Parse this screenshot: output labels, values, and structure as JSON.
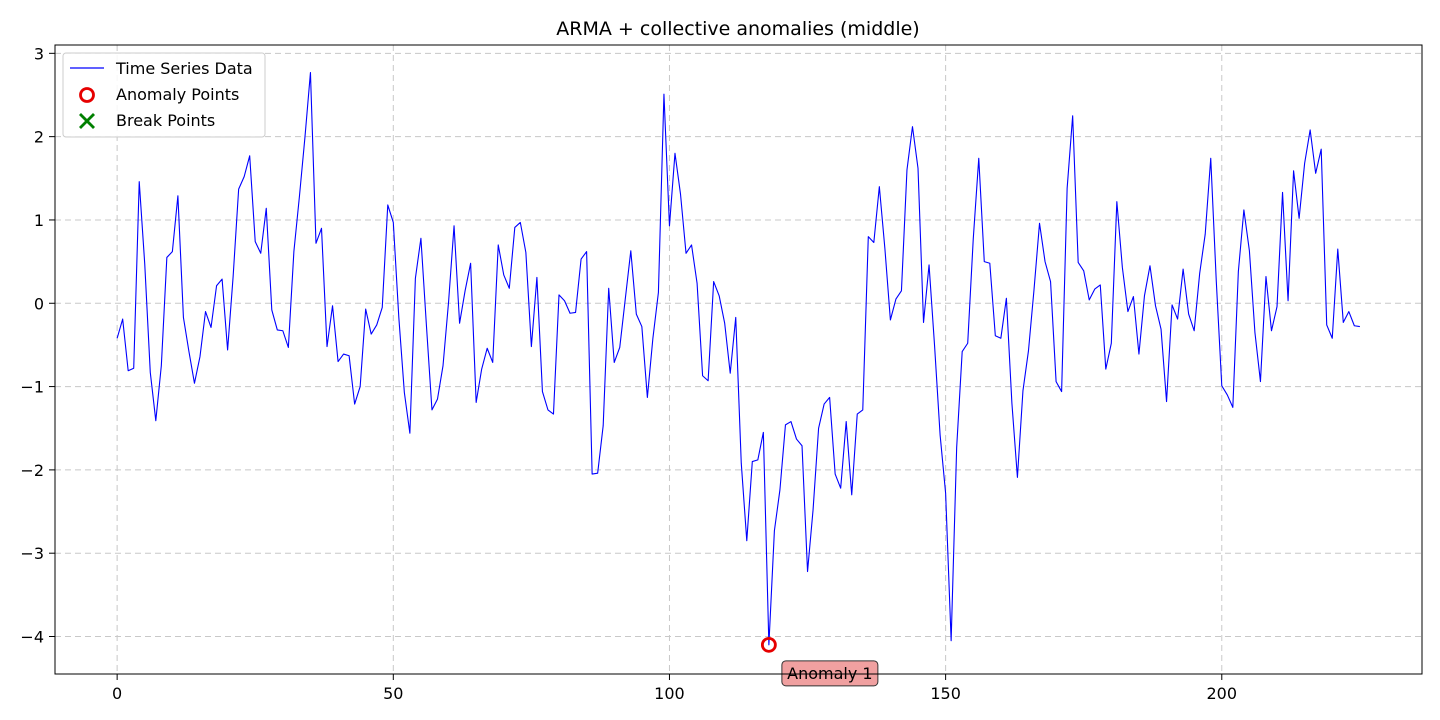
{
  "chart_data": {
    "type": "line",
    "title": "ARMA + collective anomalies (middle)",
    "xlabel": "",
    "ylabel": "",
    "xlim": [
      -11.25,
      236.25
    ],
    "ylim": [
      -4.45,
      3.1
    ],
    "xticks": [
      0,
      50,
      100,
      150,
      200
    ],
    "yticks": [
      3,
      2,
      1,
      0,
      -1,
      -2,
      -3,
      -4
    ],
    "ytick_labels": [
      "3",
      "2",
      "1",
      "0",
      "−1",
      "−2",
      "−3",
      "−4"
    ],
    "grid": true,
    "legend_position": "upper-left",
    "series": [
      {
        "name": "Time Series Data",
        "color": "#0000ff",
        "x_start": 0,
        "values": [
          -0.42,
          -0.19,
          -0.81,
          -0.78,
          1.46,
          0.47,
          -0.83,
          -1.41,
          -0.75,
          0.55,
          0.62,
          1.29,
          -0.17,
          -0.58,
          -0.96,
          -0.64,
          -0.1,
          -0.29,
          0.21,
          0.29,
          -0.56,
          0.32,
          1.37,
          1.52,
          1.77,
          0.74,
          0.6,
          1.14,
          -0.08,
          -0.32,
          -0.33,
          -0.53,
          0.62,
          1.28,
          1.99,
          2.77,
          0.72,
          0.9,
          -0.52,
          -0.03,
          -0.7,
          -0.61,
          -0.63,
          -1.21,
          -1.0,
          -0.07,
          -0.37,
          -0.26,
          -0.05,
          1.18,
          0.97,
          -0.17,
          -1.07,
          -1.56,
          0.3,
          0.78,
          -0.27,
          -1.28,
          -1.15,
          -0.75,
          0.01,
          0.93,
          -0.24,
          0.15,
          0.48,
          -1.19,
          -0.79,
          -0.54,
          -0.71,
          0.7,
          0.34,
          0.18,
          0.91,
          0.97,
          0.61,
          -0.52,
          0.31,
          -1.06,
          -1.28,
          -1.33,
          0.1,
          0.03,
          -0.12,
          -0.11,
          0.53,
          0.62,
          -2.05,
          -2.04,
          -1.47,
          0.18,
          -0.71,
          -0.53,
          0.05,
          0.63,
          -0.13,
          -0.28,
          -1.13,
          -0.42,
          0.13,
          2.51,
          0.93,
          1.8,
          1.31,
          0.6,
          0.7,
          0.24,
          -0.87,
          -0.93,
          0.26,
          0.09,
          -0.24,
          -0.84,
          -0.17,
          -1.92,
          -2.85,
          -1.9,
          -1.88,
          -1.55,
          -4.1,
          -2.73,
          -2.24,
          -1.46,
          -1.42,
          -1.63,
          -1.71,
          -3.22,
          -2.48,
          -1.5,
          -1.21,
          -1.13,
          -2.05,
          -2.22,
          -1.42,
          -2.3,
          -1.33,
          -1.28,
          0.8,
          0.73,
          1.4,
          0.66,
          -0.2,
          0.05,
          0.15,
          1.6,
          2.12,
          1.62,
          -0.23,
          0.46,
          -0.51,
          -1.58,
          -2.28,
          -4.05,
          -1.73,
          -0.58,
          -0.48,
          0.77,
          1.74,
          0.5,
          0.48,
          -0.39,
          -0.42,
          0.06,
          -1.2,
          -2.09,
          -1.05,
          -0.57,
          0.16,
          0.96,
          0.5,
          0.26,
          -0.94,
          -1.06,
          1.38,
          2.25,
          0.49,
          0.39,
          0.04,
          0.17,
          0.22,
          -0.79,
          -0.48,
          1.22,
          0.43,
          -0.1,
          0.08,
          -0.61,
          0.09,
          0.45,
          -0.03,
          -0.31,
          -1.18,
          -0.02,
          -0.19,
          0.41,
          -0.13,
          -0.33,
          0.36,
          0.83,
          1.74,
          0.27,
          -0.99,
          -1.1,
          -1.25,
          0.38,
          1.12,
          0.63,
          -0.35,
          -0.94,
          0.32,
          -0.33,
          -0.04,
          1.33,
          0.03,
          1.59,
          1.02,
          1.68,
          2.08,
          1.56,
          1.85,
          -0.26,
          -0.42,
          0.65,
          -0.23,
          -0.1,
          -0.27,
          -0.28
        ]
      }
    ],
    "anomaly_points": [
      {
        "name": "Anomaly Points",
        "x": 118,
        "y": -4.1,
        "color": "#e60000",
        "label": "Anomaly 1"
      }
    ],
    "break_points": [],
    "legend": [
      {
        "label": "Time Series Data",
        "marker": "line",
        "color": "#0000ff"
      },
      {
        "label": "Anomaly Points",
        "marker": "circle",
        "color": "#e60000"
      },
      {
        "label": "Break Points",
        "marker": "x",
        "color": "#008000"
      }
    ]
  }
}
